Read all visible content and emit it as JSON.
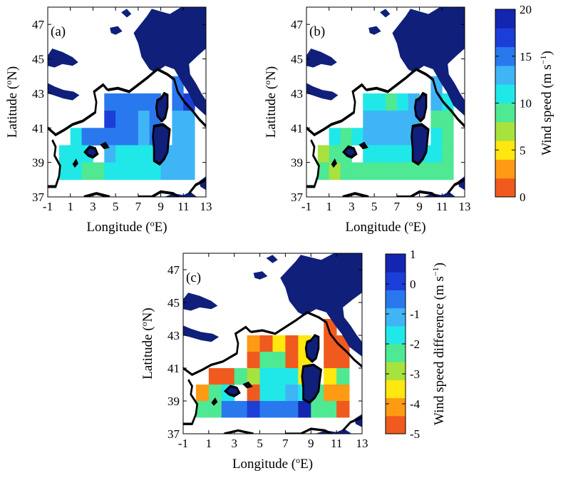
{
  "chart_data": [
    {
      "type": "heatmap",
      "panel_label": "(a)",
      "xlabel": "Longitude (",
      "xlabel_sup": "o",
      "xlabel_end": "E)",
      "ylabel": "Latitude (",
      "ylabel_sup": "o",
      "ylabel_end": "N)",
      "xlim": [
        -1,
        13
      ],
      "ylim": [
        37,
        48
      ],
      "xticks": [
        -1,
        1,
        3,
        5,
        7,
        9,
        11,
        13
      ],
      "yticks": [
        37,
        39,
        41,
        43,
        45,
        47
      ],
      "cell_size_deg": 1,
      "colormap": "wind_speed",
      "cells": [
        {
          "lon": 10.0,
          "lat": 43.0,
          "value": 15
        },
        {
          "lon": 4.0,
          "lat": 42.0,
          "value": 15
        },
        {
          "lon": 5.0,
          "lat": 42.0,
          "value": 14
        },
        {
          "lon": 6.0,
          "lat": 42.0,
          "value": 14
        },
        {
          "lon": 7.0,
          "lat": 42.0,
          "value": 14
        },
        {
          "lon": 8.0,
          "lat": 42.0,
          "value": 15
        },
        {
          "lon": 10.0,
          "lat": 42.0,
          "value": 15
        },
        {
          "lon": 11.0,
          "lat": 42.0,
          "value": 16
        },
        {
          "lon": 4.0,
          "lat": 41.0,
          "value": 16
        },
        {
          "lon": 5.0,
          "lat": 41.0,
          "value": 14
        },
        {
          "lon": 6.0,
          "lat": 41.0,
          "value": 14
        },
        {
          "lon": 7.0,
          "lat": 41.0,
          "value": 13
        },
        {
          "lon": 8.0,
          "lat": 41.0,
          "value": 15
        },
        {
          "lon": 10.0,
          "lat": 41.0,
          "value": 12
        },
        {
          "lon": 11.0,
          "lat": 41.0,
          "value": 12
        },
        {
          "lon": 1.0,
          "lat": 40.0,
          "value": 11
        },
        {
          "lon": 2.0,
          "lat": 40.0,
          "value": 15
        },
        {
          "lon": 3.0,
          "lat": 40.0,
          "value": 15
        },
        {
          "lon": 4.0,
          "lat": 40.0,
          "value": 14
        },
        {
          "lon": 5.0,
          "lat": 40.0,
          "value": 14
        },
        {
          "lon": 6.0,
          "lat": 40.0,
          "value": 14
        },
        {
          "lon": 7.0,
          "lat": 40.0,
          "value": 13
        },
        {
          "lon": 8.0,
          "lat": 40.0,
          "value": 14
        },
        {
          "lon": 10.0,
          "lat": 40.0,
          "value": 12
        },
        {
          "lon": 11.0,
          "lat": 40.0,
          "value": 12
        },
        {
          "lon": 0.0,
          "lat": 39.0,
          "value": 11
        },
        {
          "lon": 1.0,
          "lat": 39.0,
          "value": 11
        },
        {
          "lon": 2.0,
          "lat": 39.0,
          "value": 11
        },
        {
          "lon": 4.0,
          "lat": 39.0,
          "value": 12
        },
        {
          "lon": 5.0,
          "lat": 39.0,
          "value": 11
        },
        {
          "lon": 6.0,
          "lat": 39.0,
          "value": 11
        },
        {
          "lon": 7.0,
          "lat": 39.0,
          "value": 11
        },
        {
          "lon": 8.0,
          "lat": 39.0,
          "value": 11
        },
        {
          "lon": 9.0,
          "lat": 39.0,
          "value": 12
        },
        {
          "lon": 10.0,
          "lat": 39.0,
          "value": 12
        },
        {
          "lon": 11.0,
          "lat": 39.0,
          "value": 12
        },
        {
          "lon": 0.0,
          "lat": 38.0,
          "value": 11
        },
        {
          "lon": 1.0,
          "lat": 38.0,
          "value": 11
        },
        {
          "lon": 2.0,
          "lat": 38.0,
          "value": 9
        },
        {
          "lon": 3.0,
          "lat": 38.0,
          "value": 9
        },
        {
          "lon": 4.0,
          "lat": 38.0,
          "value": 11
        },
        {
          "lon": 5.0,
          "lat": 38.0,
          "value": 11
        },
        {
          "lon": 6.0,
          "lat": 38.0,
          "value": 11
        },
        {
          "lon": 7.0,
          "lat": 38.0,
          "value": 11
        },
        {
          "lon": 8.0,
          "lat": 38.0,
          "value": 11
        },
        {
          "lon": 9.0,
          "lat": 38.0,
          "value": 12
        },
        {
          "lon": 10.0,
          "lat": 38.0,
          "value": 12
        },
        {
          "lon": 11.0,
          "lat": 38.0,
          "value": 12
        }
      ]
    },
    {
      "type": "heatmap",
      "panel_label": "(b)",
      "xlabel": "Longitude (",
      "xlabel_sup": "o",
      "xlabel_end": "E)",
      "ylabel": "Latitude (",
      "ylabel_sup": "o",
      "ylabel_end": "N)",
      "xlim": [
        -1,
        13
      ],
      "ylim": [
        37,
        48
      ],
      "xticks": [
        -1,
        1,
        3,
        5,
        7,
        9,
        11,
        13
      ],
      "yticks": [
        37,
        39,
        41,
        43,
        45,
        47
      ],
      "cell_size_deg": 1,
      "colormap": "wind_speed",
      "cells": [
        {
          "lon": 10.0,
          "lat": 43.0,
          "value": 12
        },
        {
          "lon": 4.0,
          "lat": 42.0,
          "value": 11
        },
        {
          "lon": 5.0,
          "lat": 42.0,
          "value": 11
        },
        {
          "lon": 6.0,
          "lat": 42.0,
          "value": 9
        },
        {
          "lon": 7.0,
          "lat": 42.0,
          "value": 11
        },
        {
          "lon": 8.0,
          "lat": 42.0,
          "value": 12
        },
        {
          "lon": 10.0,
          "lat": 42.0,
          "value": 12
        },
        {
          "lon": 11.0,
          "lat": 42.0,
          "value": 10
        },
        {
          "lon": 4.0,
          "lat": 41.0,
          "value": 12
        },
        {
          "lon": 5.0,
          "lat": 41.0,
          "value": 12
        },
        {
          "lon": 6.0,
          "lat": 41.0,
          "value": 12
        },
        {
          "lon": 7.0,
          "lat": 41.0,
          "value": 12
        },
        {
          "lon": 8.0,
          "lat": 41.0,
          "value": 12
        },
        {
          "lon": 10.0,
          "lat": 41.0,
          "value": 9
        },
        {
          "lon": 11.0,
          "lat": 41.0,
          "value": 9
        },
        {
          "lon": 1.0,
          "lat": 40.0,
          "value": 10
        },
        {
          "lon": 2.0,
          "lat": 40.0,
          "value": 8
        },
        {
          "lon": 3.0,
          "lat": 40.0,
          "value": 11
        },
        {
          "lon": 4.0,
          "lat": 40.0,
          "value": 12
        },
        {
          "lon": 5.0,
          "lat": 40.0,
          "value": 12
        },
        {
          "lon": 6.0,
          "lat": 40.0,
          "value": 12
        },
        {
          "lon": 7.0,
          "lat": 40.0,
          "value": 12
        },
        {
          "lon": 8.0,
          "lat": 40.0,
          "value": 12
        },
        {
          "lon": 10.0,
          "lat": 40.0,
          "value": 10
        },
        {
          "lon": 11.0,
          "lat": 40.0,
          "value": 9
        },
        {
          "lon": 0.0,
          "lat": 39.0,
          "value": 6
        },
        {
          "lon": 1.0,
          "lat": 39.0,
          "value": 8
        },
        {
          "lon": 2.0,
          "lat": 39.0,
          "value": 9
        },
        {
          "lon": 4.0,
          "lat": 39.0,
          "value": 11
        },
        {
          "lon": 5.0,
          "lat": 39.0,
          "value": 10
        },
        {
          "lon": 6.0,
          "lat": 39.0,
          "value": 10
        },
        {
          "lon": 7.0,
          "lat": 39.0,
          "value": 10
        },
        {
          "lon": 8.0,
          "lat": 39.0,
          "value": 10
        },
        {
          "lon": 9.0,
          "lat": 39.0,
          "value": 10
        },
        {
          "lon": 10.0,
          "lat": 39.0,
          "value": 10
        },
        {
          "lon": 11.0,
          "lat": 39.0,
          "value": 9
        },
        {
          "lon": 0.0,
          "lat": 38.0,
          "value": 8
        },
        {
          "lon": 1.0,
          "lat": 38.0,
          "value": 6
        },
        {
          "lon": 2.0,
          "lat": 38.0,
          "value": 9
        },
        {
          "lon": 3.0,
          "lat": 38.0,
          "value": 9
        },
        {
          "lon": 4.0,
          "lat": 38.0,
          "value": 9
        },
        {
          "lon": 5.0,
          "lat": 38.0,
          "value": 9
        },
        {
          "lon": 6.0,
          "lat": 38.0,
          "value": 9
        },
        {
          "lon": 7.0,
          "lat": 38.0,
          "value": 9
        },
        {
          "lon": 8.0,
          "lat": 38.0,
          "value": 9
        },
        {
          "lon": 9.0,
          "lat": 38.0,
          "value": 9
        },
        {
          "lon": 10.0,
          "lat": 38.0,
          "value": 9
        },
        {
          "lon": 11.0,
          "lat": 38.0,
          "value": 9
        }
      ]
    },
    {
      "type": "heatmap",
      "panel_label": "(c)",
      "xlabel": "Longitude (",
      "xlabel_sup": "o",
      "xlabel_end": "E)",
      "ylabel": "Latitude (",
      "ylabel_sup": "o",
      "ylabel_end": "N)",
      "xlim": [
        -1,
        13
      ],
      "ylim": [
        37,
        48
      ],
      "xticks": [
        -1,
        1,
        3,
        5,
        7,
        9,
        11,
        13
      ],
      "yticks": [
        37,
        39,
        41,
        43,
        45,
        47
      ],
      "cell_size_deg": 1,
      "colormap": "wind_speed_difference",
      "cells": [
        {
          "lon": 10.0,
          "lat": 43.0,
          "value": -4.5
        },
        {
          "lon": 4.0,
          "lat": 42.0,
          "value": -4.2
        },
        {
          "lon": 5.0,
          "lat": 42.0,
          "value": -4.5
        },
        {
          "lon": 6.0,
          "lat": 42.0,
          "value": -3.5
        },
        {
          "lon": 7.0,
          "lat": 42.0,
          "value": -4.5
        },
        {
          "lon": 8.0,
          "lat": 42.0,
          "value": -3.7
        },
        {
          "lon": 10.0,
          "lat": 42.0,
          "value": -4.5
        },
        {
          "lon": 11.0,
          "lat": 42.0,
          "value": -4.5
        },
        {
          "lon": 4.0,
          "lat": 41.0,
          "value": -4.5
        },
        {
          "lon": 5.0,
          "lat": 41.0,
          "value": -2.5
        },
        {
          "lon": 6.0,
          "lat": 41.0,
          "value": -2.5
        },
        {
          "lon": 7.0,
          "lat": 41.0,
          "value": -4.5
        },
        {
          "lon": 8.0,
          "lat": 41.0,
          "value": -3.5
        },
        {
          "lon": 10.0,
          "lat": 41.0,
          "value": -4.5
        },
        {
          "lon": 11.0,
          "lat": 41.0,
          "value": -4.5
        },
        {
          "lon": 1.0,
          "lat": 40.0,
          "value": -4.5
        },
        {
          "lon": 2.0,
          "lat": 40.0,
          "value": -4.5
        },
        {
          "lon": 3.0,
          "lat": 40.0,
          "value": -2.5
        },
        {
          "lon": 4.0,
          "lat": 40.0,
          "value": -2.8
        },
        {
          "lon": 5.0,
          "lat": 40.0,
          "value": -2.0
        },
        {
          "lon": 6.0,
          "lat": 40.0,
          "value": -1.5
        },
        {
          "lon": 7.0,
          "lat": 40.0,
          "value": -1.5
        },
        {
          "lon": 8.0,
          "lat": 40.0,
          "value": -3.5
        },
        {
          "lon": 10.0,
          "lat": 40.0,
          "value": -3.5
        },
        {
          "lon": 11.0,
          "lat": 40.0,
          "value": -2.5
        },
        {
          "lon": 0.0,
          "lat": 39.0,
          "value": -4.0
        },
        {
          "lon": 1.0,
          "lat": 39.0,
          "value": -2.5
        },
        {
          "lon": 2.0,
          "lat": 39.0,
          "value": -1.5
        },
        {
          "lon": 4.0,
          "lat": 39.0,
          "value": -4.5
        },
        {
          "lon": 5.0,
          "lat": 39.0,
          "value": -1.5
        },
        {
          "lon": 6.0,
          "lat": 39.0,
          "value": -1.5
        },
        {
          "lon": 7.0,
          "lat": 39.0,
          "value": -1.0
        },
        {
          "lon": 8.0,
          "lat": 39.0,
          "value": -1.5
        },
        {
          "lon": 9.0,
          "lat": 39.0,
          "value": -2.5
        },
        {
          "lon": 10.0,
          "lat": 39.0,
          "value": -4.0
        },
        {
          "lon": 11.0,
          "lat": 39.0,
          "value": -4.0
        },
        {
          "lon": 0.0,
          "lat": 38.0,
          "value": -2.5
        },
        {
          "lon": 1.0,
          "lat": 38.0,
          "value": -2.5
        },
        {
          "lon": 2.0,
          "lat": 38.0,
          "value": -0.5
        },
        {
          "lon": 3.0,
          "lat": 38.0,
          "value": -0.5
        },
        {
          "lon": 4.0,
          "lat": 38.0,
          "value": 0.0
        },
        {
          "lon": 5.0,
          "lat": 38.0,
          "value": -0.5
        },
        {
          "lon": 6.0,
          "lat": 38.0,
          "value": -0.5
        },
        {
          "lon": 7.0,
          "lat": 38.0,
          "value": -0.5
        },
        {
          "lon": 8.0,
          "lat": 38.0,
          "value": 0.5
        },
        {
          "lon": 9.0,
          "lat": 38.0,
          "value": -2.5
        },
        {
          "lon": 10.0,
          "lat": 38.0,
          "value": -2.5
        },
        {
          "lon": 11.0,
          "lat": 38.0,
          "value": -4.5
        }
      ]
    }
  ],
  "colorbars": [
    {
      "label": "Wind speed (m s",
      "label_sup": "−1",
      "label_end": ")",
      "range": [
        0,
        20
      ],
      "ticks": [
        0,
        5,
        10,
        15,
        20
      ],
      "colors": [
        "#f05a1e",
        "#ff9a14",
        "#ffe70f",
        "#a8e23e",
        "#4fe893",
        "#20e8e8",
        "#3fb5f5",
        "#2a78ee",
        "#1c3ed8",
        "#1426b0"
      ]
    },
    {
      "label": "Wind speed difference (m s",
      "label_sup": "−1",
      "label_end": ")",
      "range": [
        -5,
        1
      ],
      "ticks": [
        -5,
        -4,
        -3,
        -2,
        -1,
        0,
        1
      ],
      "colors": [
        "#f05a1e",
        "#ff9a14",
        "#ffe70f",
        "#a8e23e",
        "#4fe893",
        "#20e8e8",
        "#3fb5f5",
        "#2a78ee",
        "#1c3ed8",
        "#1426b0"
      ]
    }
  ],
  "colors": {
    "land": "#0f1f7a",
    "coastline": "#000000",
    "sea_background": "#ffffff"
  }
}
